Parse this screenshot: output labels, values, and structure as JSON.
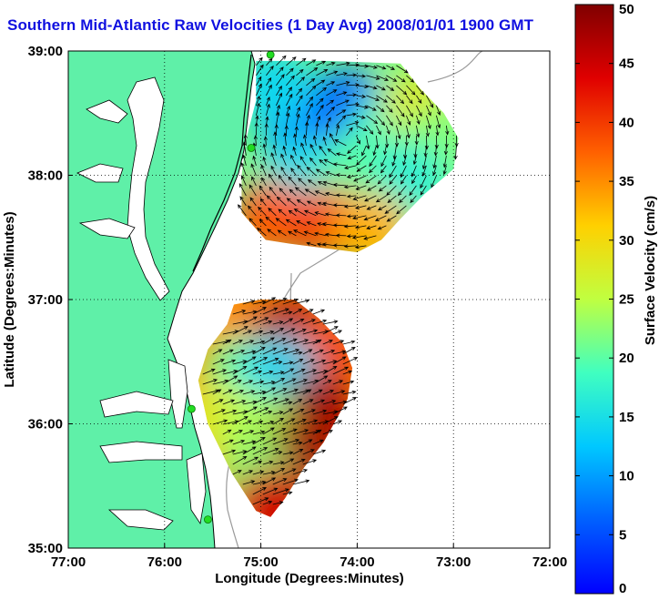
{
  "title": "Southern Mid-Atlantic Raw Velocities (1 Day Avg) 2008/01/01 1900 GMT",
  "chart_data": {
    "type": "heatmap",
    "title": "Southern Mid-Atlantic Raw Velocities (1 Day Avg) 2008/01/01 1900 GMT",
    "xlabel": "Longitude (Degrees:Minutes)",
    "ylabel": "Latitude (Degrees:Minutes)",
    "xlim": [
      -77,
      -72
    ],
    "ylim": [
      35,
      39
    ],
    "x_ticks": [
      "77:00",
      "76:00",
      "75:00",
      "74:00",
      "73:00",
      "72:00"
    ],
    "y_ticks": [
      "35:00",
      "36:00",
      "37:00",
      "38:00",
      "39:00"
    ],
    "grid": true,
    "colorbar": {
      "label": "Surface Velocity (cm/s)",
      "range": [
        0,
        50
      ],
      "ticks": [
        "0",
        "5",
        "10",
        "15",
        "20",
        "25",
        "30",
        "35",
        "40",
        "45",
        "50"
      ]
    },
    "colors": {
      "land": "#5ff0a8",
      "coast": "#000000",
      "bathymetry": "#9a9a9a",
      "title": "#1010e0",
      "station": "#22dd22"
    },
    "regions": [
      {
        "name": "northern coverage",
        "outline": [
          [
            -75.05,
            38.92
          ],
          [
            -74.3,
            38.92
          ],
          [
            -73.55,
            38.9
          ],
          [
            -73.35,
            38.7
          ],
          [
            -73.1,
            38.5
          ],
          [
            -72.95,
            38.3
          ],
          [
            -73.0,
            38.05
          ],
          [
            -73.3,
            37.85
          ],
          [
            -73.55,
            37.65
          ],
          [
            -73.75,
            37.48
          ],
          [
            -74.0,
            37.38
          ],
          [
            -74.4,
            37.42
          ],
          [
            -74.7,
            37.45
          ],
          [
            -74.95,
            37.48
          ],
          [
            -75.2,
            37.7
          ],
          [
            -75.2,
            38.0
          ],
          [
            -75.15,
            38.3
          ],
          [
            -75.05,
            38.6
          ]
        ],
        "samples": [
          {
            "lon": -74.6,
            "lat": 38.35,
            "speed": 8
          },
          {
            "lon": -74.1,
            "lat": 38.55,
            "speed": 6
          },
          {
            "lon": -73.7,
            "lat": 38.35,
            "speed": 18
          },
          {
            "lon": -73.35,
            "lat": 38.55,
            "speed": 28
          },
          {
            "lon": -73.15,
            "lat": 38.25,
            "speed": 22
          },
          {
            "lon": -74.85,
            "lat": 38.7,
            "speed": 14
          },
          {
            "lon": -74.6,
            "lat": 38.0,
            "speed": 15
          },
          {
            "lon": -74.0,
            "lat": 38.05,
            "speed": 20
          },
          {
            "lon": -73.45,
            "lat": 37.95,
            "speed": 17
          },
          {
            "lon": -74.9,
            "lat": 37.65,
            "speed": 38
          },
          {
            "lon": -74.3,
            "lat": 37.6,
            "speed": 40
          },
          {
            "lon": -73.85,
            "lat": 37.55,
            "speed": 33
          }
        ]
      },
      {
        "name": "southern coverage",
        "outline": [
          [
            -75.28,
            36.96
          ],
          [
            -75.0,
            37.0
          ],
          [
            -74.65,
            37.0
          ],
          [
            -74.4,
            36.85
          ],
          [
            -74.15,
            36.65
          ],
          [
            -74.05,
            36.45
          ],
          [
            -74.1,
            36.2
          ],
          [
            -74.35,
            35.85
          ],
          [
            -74.55,
            35.65
          ],
          [
            -74.75,
            35.4
          ],
          [
            -74.9,
            35.25
          ],
          [
            -75.05,
            35.3
          ],
          [
            -75.3,
            35.6
          ],
          [
            -75.55,
            36.0
          ],
          [
            -75.65,
            36.35
          ],
          [
            -75.55,
            36.6
          ],
          [
            -75.35,
            36.8
          ]
        ],
        "samples": [
          {
            "lon": -75.15,
            "lat": 36.85,
            "speed": 35
          },
          {
            "lon": -74.7,
            "lat": 36.75,
            "speed": 47
          },
          {
            "lon": -74.35,
            "lat": 36.55,
            "speed": 40
          },
          {
            "lon": -75.2,
            "lat": 36.4,
            "speed": 20
          },
          {
            "lon": -74.8,
            "lat": 36.4,
            "speed": 14
          },
          {
            "lon": -74.4,
            "lat": 36.1,
            "speed": 48
          },
          {
            "lon": -75.45,
            "lat": 36.05,
            "speed": 28
          },
          {
            "lon": -75.0,
            "lat": 35.95,
            "speed": 24
          },
          {
            "lon": -74.6,
            "lat": 35.75,
            "speed": 48
          },
          {
            "lon": -75.05,
            "lat": 35.55,
            "speed": 22
          },
          {
            "lon": -74.9,
            "lat": 35.35,
            "speed": 45
          }
        ]
      }
    ],
    "stations": [
      {
        "lon": -74.9,
        "lat": 38.97
      },
      {
        "lon": -75.1,
        "lat": 38.22
      },
      {
        "lon": -75.72,
        "lat": 36.12
      },
      {
        "lon": -75.55,
        "lat": 35.23
      }
    ]
  }
}
